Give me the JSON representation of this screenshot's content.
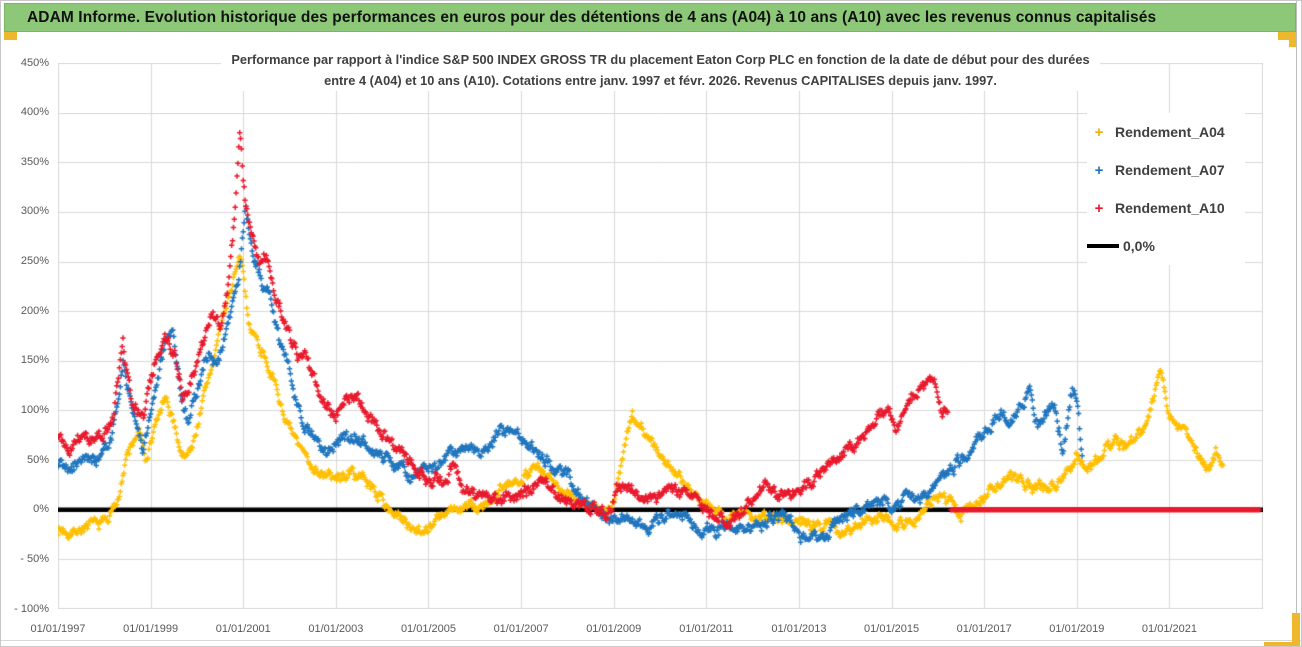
{
  "banner": {
    "title": "ADAM Informe. Evolution historique des performances en euros pour des détentions de 4 ans (A04) à 10 ans (A10) avec les revenus connus capitalisés"
  },
  "accents": {
    "gold": "#edb72e",
    "banner_green": "#8dc878",
    "grid": "#d9d9d9"
  },
  "chart_data": {
    "type": "scatter",
    "title_line1": "Performance par rapport à l'indice S&P 500 INDEX GROSS TR  du placement Eaton Corp PLC en fonction de la date de début pour des durées",
    "title_line2": "entre 4 (A04) et 10 ans (A10). Cotations entre janv. 1997 et févr. 2026. Revenus CAPITALISES depuis janv. 1997.",
    "x_range_years": [
      1997,
      2023.02
    ],
    "y_range_pct": [
      -100,
      450
    ],
    "grid_on": true,
    "grid_years": [
      1997,
      1999,
      2001,
      2003,
      2005,
      2007,
      2009,
      2011,
      2013,
      2015,
      2017,
      2019,
      2021,
      2023
    ],
    "x_ticks": [
      {
        "year": 1997,
        "label": "01/01/1997"
      },
      {
        "year": 1999,
        "label": "01/01/1999"
      },
      {
        "year": 2001,
        "label": "01/01/2001"
      },
      {
        "year": 2003,
        "label": "01/01/2003"
      },
      {
        "year": 2005,
        "label": "01/01/2005"
      },
      {
        "year": 2007,
        "label": "01/01/2007"
      },
      {
        "year": 2009,
        "label": "01/01/2009"
      },
      {
        "year": 2011,
        "label": "01/01/2011"
      },
      {
        "year": 2013,
        "label": "01/01/2013"
      },
      {
        "year": 2015,
        "label": "01/01/2015"
      },
      {
        "year": 2017,
        "label": "01/01/2017"
      },
      {
        "year": 2019,
        "label": "01/01/2019"
      },
      {
        "year": 2021,
        "label": "01/01/2021"
      }
    ],
    "y_ticks": [
      {
        "value": 450,
        "label": "450%"
      },
      {
        "value": 400,
        "label": "400%"
      },
      {
        "value": 350,
        "label": "350%"
      },
      {
        "value": 300,
        "label": "300%"
      },
      {
        "value": 250,
        "label": "250%"
      },
      {
        "value": 200,
        "label": "200%"
      },
      {
        "value": 150,
        "label": "150%"
      },
      {
        "value": 100,
        "label": "100%"
      },
      {
        "value": 50,
        "label": "50%"
      },
      {
        "value": 0,
        "label": "0%"
      },
      {
        "value": -50,
        "label": "- 50%"
      },
      {
        "value": -100,
        "label": "- 100%"
      }
    ],
    "zero_line": {
      "value_pct": 0,
      "color": "#000000",
      "label": "0,0%"
    },
    "legend": [
      {
        "label": "Rendement_A04",
        "color": "#f5ae00",
        "marker": "plus"
      },
      {
        "label": "Rendement_A07",
        "color": "#1f75be",
        "marker": "plus"
      },
      {
        "label": "Rendement_A10",
        "color": "#e8192c",
        "marker": "plus"
      },
      {
        "label": "0,0%",
        "color": "#000000",
        "marker": "line"
      }
    ],
    "series": [
      {
        "name": "Rendement_A04",
        "color": "#ffbf00",
        "seed": 7,
        "noise": 6.5,
        "anchors": [
          [
            1997.0,
            -20
          ],
          [
            1997.3,
            -22
          ],
          [
            1997.6,
            -17
          ],
          [
            1997.9,
            -14
          ],
          [
            1998.1,
            -8
          ],
          [
            1998.25,
            5
          ],
          [
            1998.5,
            55
          ],
          [
            1998.75,
            80
          ],
          [
            1998.9,
            48
          ],
          [
            1999.1,
            85
          ],
          [
            1999.3,
            110
          ],
          [
            1999.5,
            88
          ],
          [
            1999.7,
            52
          ],
          [
            1999.9,
            62
          ],
          [
            2000.1,
            105
          ],
          [
            2000.35,
            150
          ],
          [
            2000.6,
            200
          ],
          [
            2000.8,
            235
          ],
          [
            2000.95,
            253
          ],
          [
            2001.1,
            195
          ],
          [
            2001.3,
            170
          ],
          [
            2001.5,
            152
          ],
          [
            2001.8,
            108
          ],
          [
            2002.0,
            80
          ],
          [
            2002.3,
            56
          ],
          [
            2002.6,
            40
          ],
          [
            2003.0,
            30
          ],
          [
            2003.3,
            38
          ],
          [
            2003.7,
            28
          ],
          [
            2004.0,
            10
          ],
          [
            2004.3,
            -6
          ],
          [
            2004.6,
            -16
          ],
          [
            2004.9,
            -20
          ],
          [
            2005.2,
            -10
          ],
          [
            2005.5,
            -2
          ],
          [
            2005.8,
            4
          ],
          [
            2006.1,
            1
          ],
          [
            2006.4,
            12
          ],
          [
            2006.8,
            26
          ],
          [
            2007.1,
            38
          ],
          [
            2007.35,
            42
          ],
          [
            2007.6,
            30
          ],
          [
            2007.9,
            22
          ],
          [
            2008.2,
            12
          ],
          [
            2008.5,
            4
          ],
          [
            2008.8,
            -4
          ],
          [
            2009.0,
            8
          ],
          [
            2009.2,
            55
          ],
          [
            2009.4,
            95
          ],
          [
            2009.6,
            84
          ],
          [
            2009.8,
            70
          ],
          [
            2010.0,
            54
          ],
          [
            2010.3,
            40
          ],
          [
            2010.6,
            24
          ],
          [
            2010.9,
            10
          ],
          [
            2011.2,
            -2
          ],
          [
            2011.5,
            -9
          ],
          [
            2011.8,
            -4
          ],
          [
            2012.1,
            -10
          ],
          [
            2012.4,
            -4
          ],
          [
            2012.7,
            -8
          ],
          [
            2013.0,
            -11
          ],
          [
            2013.3,
            -18
          ],
          [
            2013.6,
            -14
          ],
          [
            2013.9,
            -22
          ],
          [
            2014.2,
            -17
          ],
          [
            2014.5,
            -9
          ],
          [
            2014.8,
            -4
          ],
          [
            2015.05,
            -12
          ],
          [
            2015.3,
            -15
          ],
          [
            2015.6,
            -5
          ],
          [
            2015.9,
            10
          ],
          [
            2016.1,
            16
          ],
          [
            2016.35,
            2
          ],
          [
            2016.5,
            -7
          ],
          [
            2016.7,
            4
          ],
          [
            2017.0,
            15
          ],
          [
            2017.3,
            24
          ],
          [
            2017.55,
            32
          ],
          [
            2017.8,
            28
          ],
          [
            2018.1,
            24
          ],
          [
            2018.4,
            21
          ],
          [
            2018.7,
            34
          ],
          [
            2019.0,
            54
          ],
          [
            2019.2,
            40
          ],
          [
            2019.5,
            55
          ],
          [
            2019.8,
            72
          ],
          [
            2020.0,
            64
          ],
          [
            2020.3,
            74
          ],
          [
            2020.55,
            92
          ],
          [
            2020.8,
            145
          ],
          [
            2021.0,
            95
          ],
          [
            2021.2,
            80
          ],
          [
            2021.35,
            87
          ],
          [
            2021.6,
            54
          ],
          [
            2021.85,
            40
          ],
          [
            2022.0,
            58
          ],
          [
            2022.17,
            45
          ]
        ]
      },
      {
        "name": "Rendement_A07",
        "color": "#1f75be",
        "seed": 19,
        "noise": 7.5,
        "anchors": [
          [
            1997.0,
            48
          ],
          [
            1997.3,
            42
          ],
          [
            1997.6,
            55
          ],
          [
            1997.9,
            50
          ],
          [
            1998.15,
            68
          ],
          [
            1998.4,
            150
          ],
          [
            1998.6,
            95
          ],
          [
            1998.85,
            60
          ],
          [
            1999.1,
            120
          ],
          [
            1999.35,
            172
          ],
          [
            1999.5,
            178
          ],
          [
            1999.65,
            120
          ],
          [
            1999.8,
            88
          ],
          [
            2000.0,
            118
          ],
          [
            2000.2,
            158
          ],
          [
            2000.45,
            148
          ],
          [
            2000.7,
            188
          ],
          [
            2000.9,
            232
          ],
          [
            2001.05,
            305
          ],
          [
            2001.2,
            255
          ],
          [
            2001.4,
            230
          ],
          [
            2001.6,
            210
          ],
          [
            2001.8,
            165
          ],
          [
            2002.0,
            140
          ],
          [
            2002.2,
            100
          ],
          [
            2002.5,
            70
          ],
          [
            2002.8,
            56
          ],
          [
            2003.1,
            70
          ],
          [
            2003.4,
            76
          ],
          [
            2003.7,
            64
          ],
          [
            2004.0,
            54
          ],
          [
            2004.3,
            44
          ],
          [
            2004.6,
            34
          ],
          [
            2004.9,
            42
          ],
          [
            2005.2,
            45
          ],
          [
            2005.5,
            55
          ],
          [
            2005.8,
            64
          ],
          [
            2006.1,
            58
          ],
          [
            2006.4,
            70
          ],
          [
            2006.7,
            80
          ],
          [
            2007.0,
            74
          ],
          [
            2007.25,
            64
          ],
          [
            2007.5,
            50
          ],
          [
            2007.8,
            40
          ],
          [
            2008.05,
            32
          ],
          [
            2008.3,
            10
          ],
          [
            2008.6,
            0
          ],
          [
            2008.9,
            -10
          ],
          [
            2009.15,
            -6
          ],
          [
            2009.4,
            -14
          ],
          [
            2009.7,
            -20
          ],
          [
            2010.0,
            -8
          ],
          [
            2010.3,
            -2
          ],
          [
            2010.6,
            -6
          ],
          [
            2010.9,
            -16
          ],
          [
            2011.2,
            -23
          ],
          [
            2011.5,
            -18
          ],
          [
            2011.8,
            -21
          ],
          [
            2012.1,
            -15
          ],
          [
            2012.4,
            -8
          ],
          [
            2012.7,
            -6
          ],
          [
            2013.0,
            -26
          ],
          [
            2013.2,
            -36
          ],
          [
            2013.5,
            -25
          ],
          [
            2013.8,
            -15
          ],
          [
            2014.1,
            -9
          ],
          [
            2014.4,
            4
          ],
          [
            2014.7,
            12
          ],
          [
            2015.0,
            4
          ],
          [
            2015.3,
            11
          ],
          [
            2015.6,
            14
          ],
          [
            2015.9,
            20
          ],
          [
            2016.2,
            34
          ],
          [
            2016.5,
            50
          ],
          [
            2016.8,
            64
          ],
          [
            2017.1,
            80
          ],
          [
            2017.35,
            100
          ],
          [
            2017.6,
            82
          ],
          [
            2017.8,
            104
          ],
          [
            2018.0,
            118
          ],
          [
            2018.15,
            86
          ],
          [
            2018.35,
            95
          ],
          [
            2018.5,
            107
          ],
          [
            2018.7,
            62
          ],
          [
            2018.9,
            124
          ],
          [
            2019.0,
            108
          ],
          [
            2019.12,
            55
          ]
        ]
      },
      {
        "name": "Rendement_A10",
        "color": "#e8192c",
        "seed": 41,
        "noise": 7.5,
        "flat_zero_from": 2016.28,
        "flat_zero_to": 2022.95,
        "anchors": [
          [
            1997.0,
            70
          ],
          [
            1997.25,
            62
          ],
          [
            1997.5,
            75
          ],
          [
            1997.75,
            68
          ],
          [
            1998.0,
            74
          ],
          [
            1998.2,
            95
          ],
          [
            1998.4,
            165
          ],
          [
            1998.6,
            112
          ],
          [
            1998.85,
            92
          ],
          [
            1999.1,
            150
          ],
          [
            1999.3,
            175
          ],
          [
            1999.5,
            160
          ],
          [
            1999.7,
            118
          ],
          [
            1999.9,
            132
          ],
          [
            2000.1,
            162
          ],
          [
            2000.3,
            195
          ],
          [
            2000.5,
            185
          ],
          [
            2000.7,
            230
          ],
          [
            2000.85,
            320
          ],
          [
            2000.93,
            378
          ],
          [
            2001.05,
            300
          ],
          [
            2001.2,
            272
          ],
          [
            2001.35,
            248
          ],
          [
            2001.5,
            258
          ],
          [
            2001.65,
            225
          ],
          [
            2001.8,
            200
          ],
          [
            2002.0,
            172
          ],
          [
            2002.2,
            150
          ],
          [
            2002.4,
            155
          ],
          [
            2002.6,
            122
          ],
          [
            2002.8,
            106
          ],
          [
            2003.0,
            95
          ],
          [
            2003.2,
            110
          ],
          [
            2003.45,
            114
          ],
          [
            2003.7,
            95
          ],
          [
            2003.9,
            80
          ],
          [
            2004.2,
            64
          ],
          [
            2004.5,
            55
          ],
          [
            2004.8,
            36
          ],
          [
            2005.05,
            28
          ],
          [
            2005.3,
            32
          ],
          [
            2005.5,
            44
          ],
          [
            2005.7,
            26
          ],
          [
            2006.0,
            15
          ],
          [
            2006.3,
            8
          ],
          [
            2006.6,
            10
          ],
          [
            2006.9,
            12
          ],
          [
            2007.2,
            22
          ],
          [
            2007.45,
            28
          ],
          [
            2007.7,
            18
          ],
          [
            2008.0,
            10
          ],
          [
            2008.3,
            5
          ],
          [
            2008.6,
            -2
          ],
          [
            2008.85,
            -8
          ],
          [
            2009.1,
            22
          ],
          [
            2009.35,
            30
          ],
          [
            2009.6,
            10
          ],
          [
            2009.9,
            12
          ],
          [
            2010.2,
            20
          ],
          [
            2010.5,
            15
          ],
          [
            2010.8,
            8
          ],
          [
            2011.1,
            -5
          ],
          [
            2011.4,
            -12
          ],
          [
            2011.7,
            -8
          ],
          [
            2012.0,
            14
          ],
          [
            2012.25,
            28
          ],
          [
            2012.5,
            12
          ],
          [
            2012.8,
            15
          ],
          [
            2013.0,
            20
          ],
          [
            2013.3,
            30
          ],
          [
            2013.6,
            42
          ],
          [
            2013.9,
            55
          ],
          [
            2014.2,
            66
          ],
          [
            2014.5,
            80
          ],
          [
            2014.75,
            95
          ],
          [
            2014.95,
            100
          ],
          [
            2015.1,
            76
          ],
          [
            2015.3,
            95
          ],
          [
            2015.55,
            120
          ],
          [
            2015.8,
            134
          ],
          [
            2015.95,
            124
          ],
          [
            2016.1,
            98
          ],
          [
            2016.22,
            104
          ]
        ]
      }
    ]
  }
}
